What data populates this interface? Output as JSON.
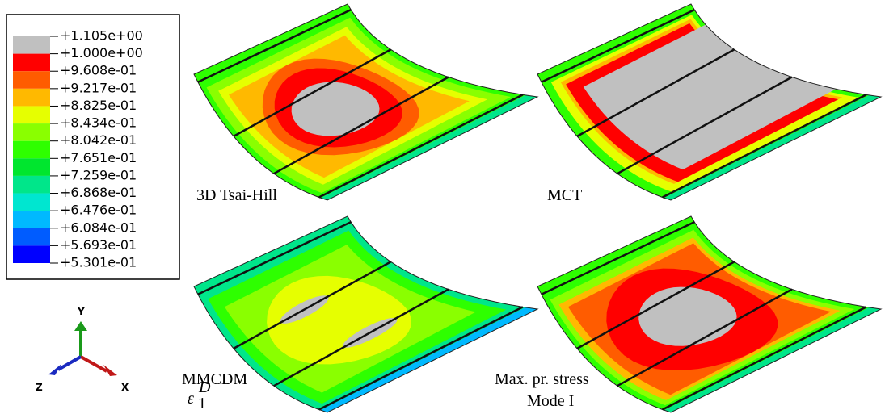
{
  "legend": {
    "labels": [
      "+1.105e+00",
      "+1.000e+00",
      "+9.608e-01",
      "+9.217e-01",
      "+8.825e-01",
      "+8.434e-01",
      "+8.042e-01",
      "+7.651e-01",
      "+7.259e-01",
      "+6.868e-01",
      "+6.476e-01",
      "+6.084e-01",
      "+5.693e-01",
      "+5.301e-01"
    ]
  },
  "panels": [
    {
      "label": "3D Tsai-Hill"
    },
    {
      "label": "MCT"
    },
    {
      "label": "MMCDM",
      "symbol": "ε",
      "subscript": "1",
      "superscript": "D"
    },
    {
      "label": "Max. pr. stress",
      "sublabel": "Mode I"
    }
  ],
  "triad": {
    "x": "X",
    "y": "Y",
    "z": "Z"
  }
}
